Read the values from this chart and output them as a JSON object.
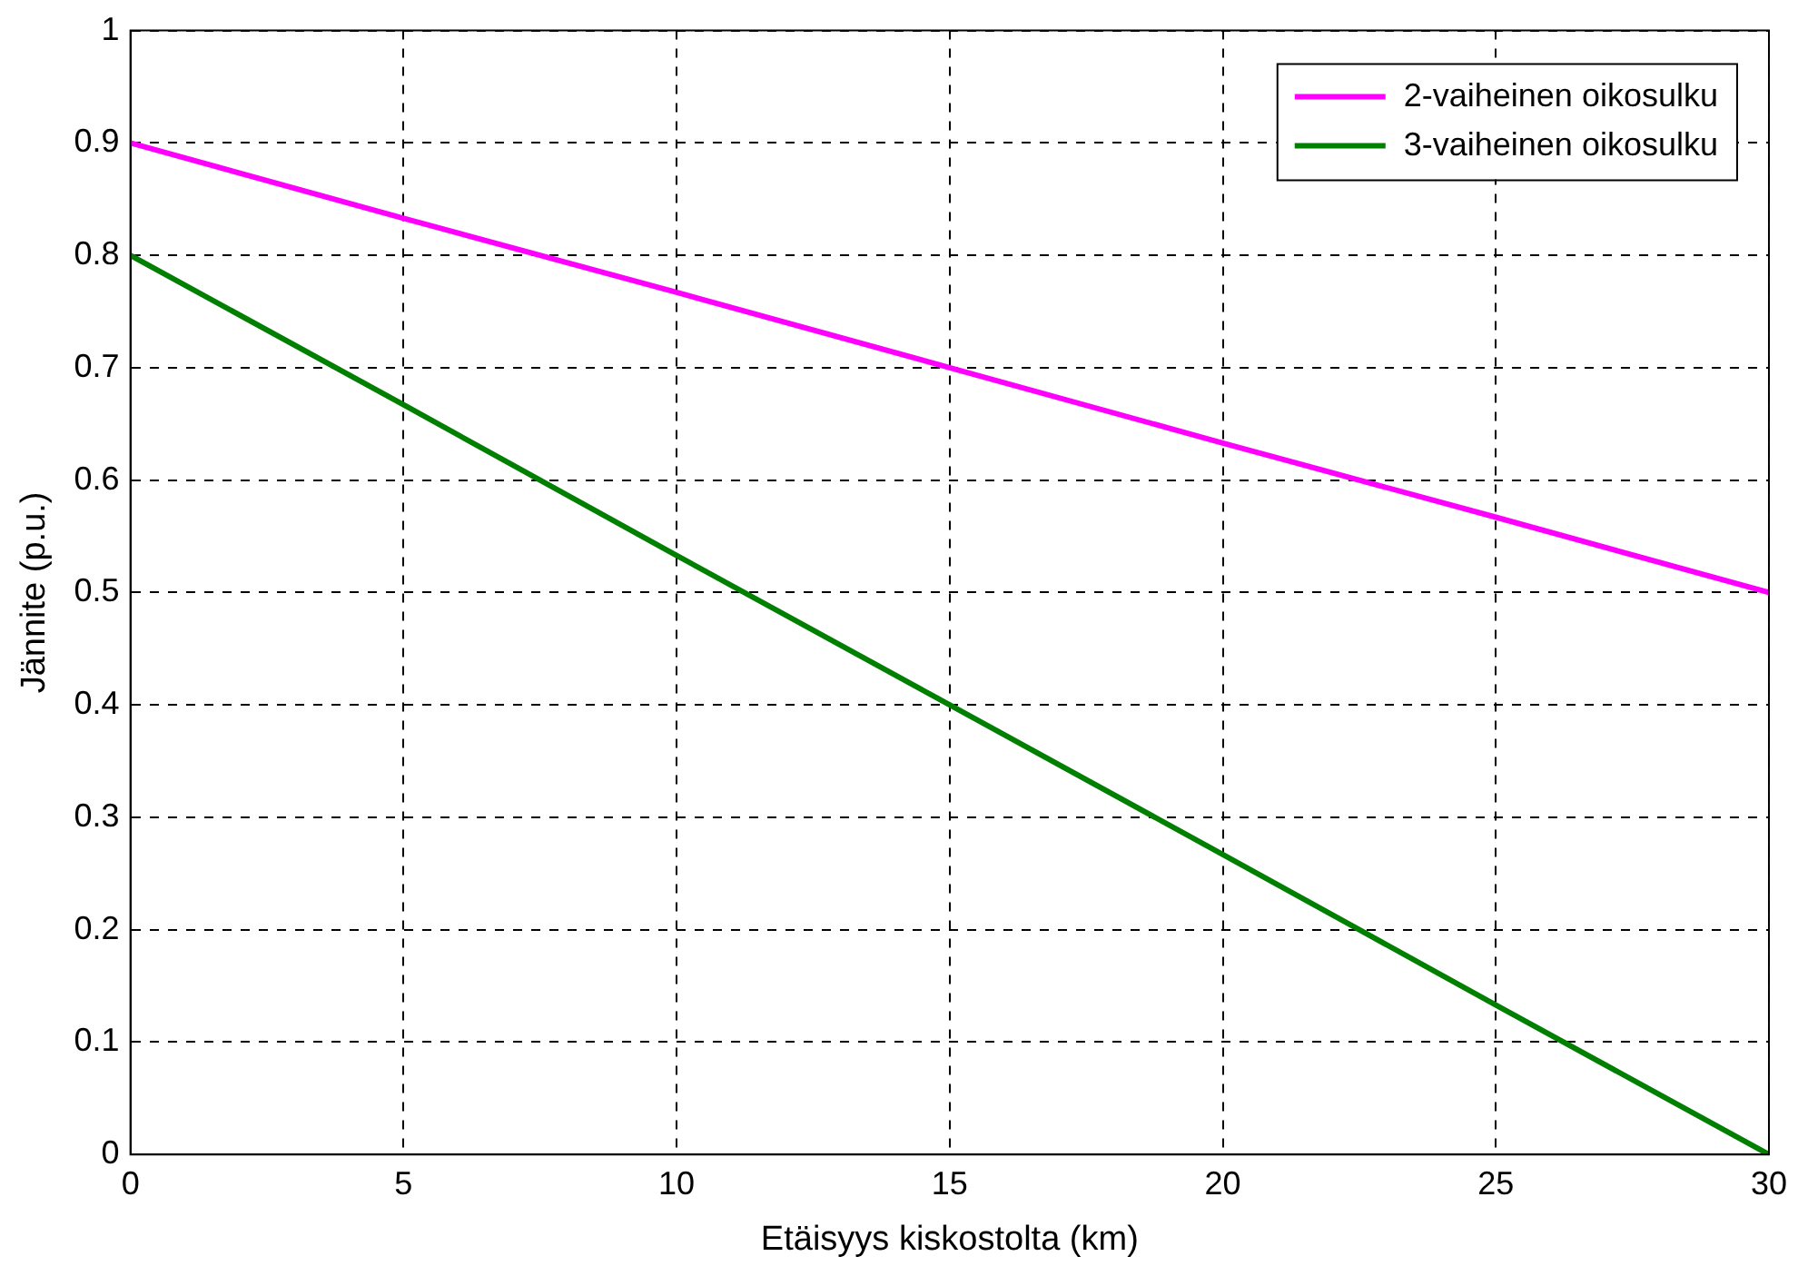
{
  "chart_data": {
    "type": "line",
    "xlabel": "Etäisyys kiskostolta (km)",
    "ylabel": "Jännite (p.u.)",
    "x": [
      0,
      5,
      10,
      15,
      20,
      25,
      30
    ],
    "series": [
      {
        "name": "2-vaiheinen oikosulku",
        "color": "#ff00ff",
        "values": [
          0.9,
          0.833,
          0.767,
          0.7,
          0.633,
          0.567,
          0.5
        ]
      },
      {
        "name": "3-vaiheinen oikosulku",
        "color": "#007f00",
        "values": [
          0.8,
          0.667,
          0.533,
          0.4,
          0.267,
          0.133,
          0
        ]
      }
    ],
    "xlim": [
      0,
      30
    ],
    "xticks": [
      0,
      5,
      10,
      15,
      20,
      25,
      30
    ],
    "ylim": [
      0,
      1
    ],
    "yticks": [
      0,
      0.1,
      0.2,
      0.3,
      0.4,
      0.5,
      0.6,
      0.7,
      0.8,
      0.9,
      1
    ],
    "grid": true,
    "legend": "top right",
    "marker": "none",
    "line_style": "solid"
  }
}
